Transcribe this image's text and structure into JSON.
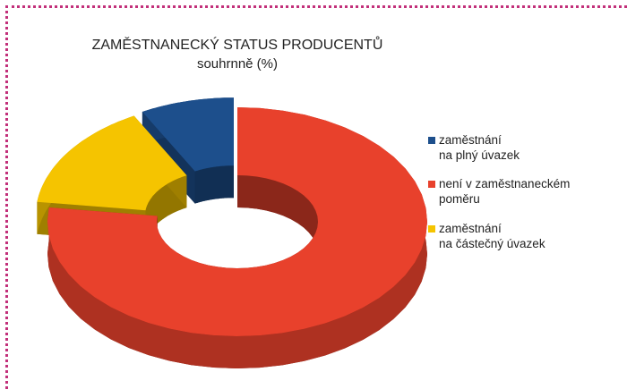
{
  "chart_data": {
    "type": "donut3d",
    "title": "ZAMĚSTNANECKÝ STATUS PRODUCENTŮ",
    "subtitle": "souhrnně (%)",
    "categories": [
      "zaměstnání\nna plný úvazek",
      "není v zaměstnaneckém\npoměru",
      "zaměstnání\nna částečný úvazek"
    ],
    "values": [
      8,
      77,
      15
    ],
    "colors": [
      "#1d4f8c",
      "#e8412c",
      "#f5c400"
    ],
    "legend": "right"
  }
}
